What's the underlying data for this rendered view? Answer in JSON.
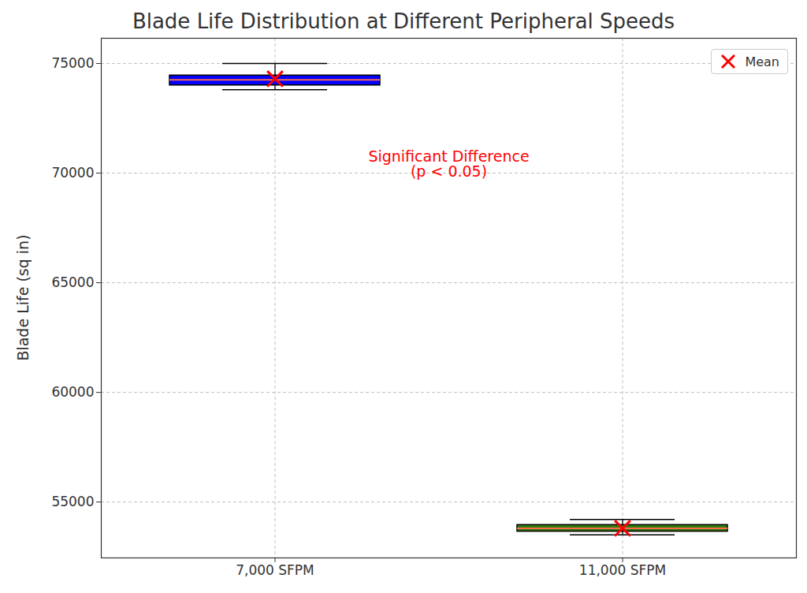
{
  "chart_data": {
    "type": "box",
    "title": "Blade Life Distribution at Different Peripheral Speeds",
    "y_label": "Blade Life (sq in)",
    "categories": [
      "7,000 SFPM",
      "11,000 SFPM"
    ],
    "boxes": [
      {
        "whisker_low": 73800,
        "q1": 74000,
        "median": 74250,
        "q3": 74450,
        "whisker_high": 75000,
        "mean": 74300
      },
      {
        "whisker_low": 53500,
        "q1": 53650,
        "median": 53800,
        "q3": 53950,
        "whisker_high": 54200,
        "mean": 53800
      }
    ],
    "colors": [
      "#0000ff",
      "#2e7d0f"
    ],
    "mean_name": "Mean",
    "mean_color": "#ff0000",
    "mean_marker": "x",
    "annotation": {
      "text": "Significant Difference\n(p < 0.05)",
      "y": 70400,
      "color": "#ff0000"
    },
    "ylim": [
      52450,
      76150
    ],
    "yticks": [
      55000,
      60000,
      65000,
      70000,
      75000
    ],
    "grid": true,
    "legend": "upper right"
  }
}
